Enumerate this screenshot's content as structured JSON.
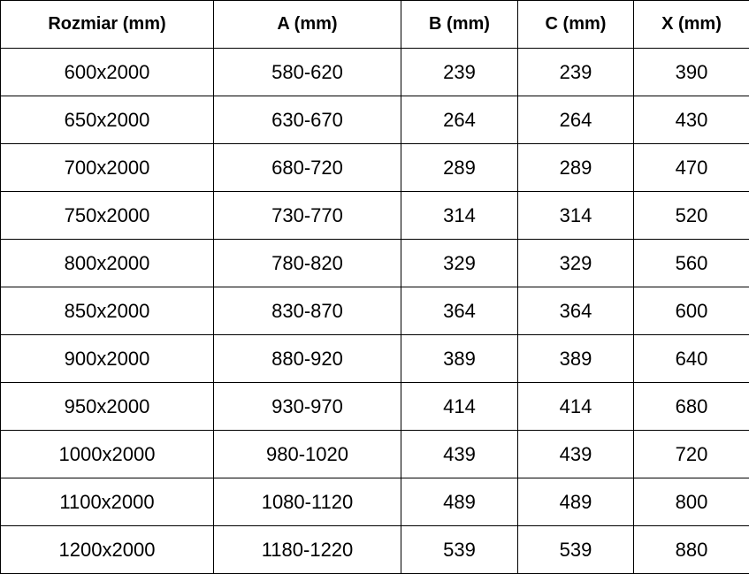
{
  "table": {
    "headers": [
      "Rozmiar (mm)",
      "A (mm)",
      "B (mm)",
      "C (mm)",
      "X (mm)"
    ],
    "rows": [
      [
        "600x2000",
        "580-620",
        "239",
        "239",
        "390"
      ],
      [
        "650x2000",
        "630-670",
        "264",
        "264",
        "430"
      ],
      [
        "700x2000",
        "680-720",
        "289",
        "289",
        "470"
      ],
      [
        "750x2000",
        "730-770",
        "314",
        "314",
        "520"
      ],
      [
        "800x2000",
        "780-820",
        "329",
        "329",
        "560"
      ],
      [
        "850x2000",
        "830-870",
        "364",
        "364",
        "600"
      ],
      [
        "900x2000",
        "880-920",
        "389",
        "389",
        "640"
      ],
      [
        "950x2000",
        "930-970",
        "414",
        "414",
        "680"
      ],
      [
        "1000x2000",
        "980-1020",
        "439",
        "439",
        "720"
      ],
      [
        "1100x2000",
        "1080-1120",
        "489",
        "489",
        "800"
      ],
      [
        "1200x2000",
        "1180-1220",
        "539",
        "539",
        "880"
      ]
    ]
  }
}
